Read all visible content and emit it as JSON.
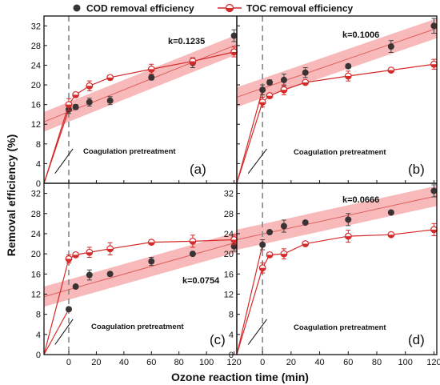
{
  "legend": {
    "cod_label": "COD removal efficiency",
    "toc_label": "TOC removal efficiency"
  },
  "colors": {
    "cod": "#3a3333",
    "toc": "#d42a2a",
    "band": "#f08080",
    "fit": "#e06060",
    "divider": "#888888"
  },
  "chart_data": [
    {
      "type": "scatter",
      "panel_label": "(a)",
      "k_label": "k=0.1235",
      "annotation": "Coagulation pretreatment",
      "xlabel": "Ozone reaction time (min)",
      "ylabel": "Removal efficiency (%)",
      "xlim": [
        -18,
        122
      ],
      "ylim": [
        0,
        34
      ],
      "xticks": [
        0,
        20,
        40,
        60,
        80,
        100,
        120
      ],
      "yticks": [
        0,
        4,
        8,
        12,
        16,
        20,
        24,
        28,
        32
      ],
      "fit": {
        "x": [
          -18,
          122
        ],
        "y": [
          12.5,
          28.2
        ]
      },
      "series": [
        {
          "name": "COD removal efficiency",
          "x": [
            -18,
            0,
            5,
            15,
            30,
            60,
            90,
            120
          ],
          "y": [
            0,
            15.0,
            15.5,
            16.5,
            16.8,
            21.5,
            24.5,
            30.0
          ],
          "err": [
            0,
            0.8,
            0.5,
            0.8,
            0.8,
            0.5,
            1.0,
            1.2
          ]
        },
        {
          "name": "TOC removal efficiency",
          "x": [
            -18,
            0,
            5,
            15,
            30,
            60,
            90,
            120
          ],
          "y": [
            0,
            16.0,
            18.0,
            19.8,
            21.5,
            23.2,
            24.8,
            26.7
          ],
          "err": [
            0,
            1.2,
            0.5,
            1.0,
            0.3,
            1.0,
            0.7,
            1.0
          ]
        }
      ]
    },
    {
      "type": "scatter",
      "panel_label": "(b)",
      "k_label": "k=0.1006",
      "annotation": "Coagulation pretreatment",
      "xlabel": "Ozone reaction time (min)",
      "ylabel": "Removal efficiency (%)",
      "xlim": [
        -18,
        122
      ],
      "ylim": [
        0,
        34
      ],
      "xticks": [
        0,
        20,
        40,
        60,
        80,
        100,
        120
      ],
      "yticks": [
        0,
        4,
        8,
        12,
        16,
        20,
        24,
        28,
        32
      ],
      "fit": {
        "x": [
          -18,
          122
        ],
        "y": [
          17.5,
          31.5
        ]
      },
      "series": [
        {
          "name": "COD removal efficiency",
          "x": [
            -18,
            0,
            5,
            15,
            30,
            60,
            90,
            120
          ],
          "y": [
            0,
            19.0,
            20.5,
            21.0,
            22.5,
            23.8,
            27.8,
            32.0
          ],
          "err": [
            0,
            1.0,
            0.5,
            1.2,
            1.0,
            0.4,
            1.2,
            1.5
          ]
        },
        {
          "name": "TOC removal efficiency",
          "x": [
            -18,
            0,
            5,
            15,
            30,
            60,
            90,
            120
          ],
          "y": [
            0,
            16.5,
            17.8,
            19.0,
            20.5,
            21.8,
            23.0,
            24.2
          ],
          "err": [
            0,
            1.0,
            0.4,
            1.0,
            0.3,
            1.0,
            0.3,
            1.0
          ]
        }
      ]
    },
    {
      "type": "scatter",
      "panel_label": "(c)",
      "k_label": "k=0.0754",
      "annotation": "Coagulation pretreatment",
      "xlabel": "Ozone reaction time (min)",
      "ylabel": "Removal efficiency (%)",
      "xlim": [
        -18,
        122
      ],
      "ylim": [
        0,
        34
      ],
      "xticks": [
        0,
        20,
        40,
        60,
        80,
        100,
        120
      ],
      "yticks": [
        0,
        4,
        8,
        12,
        16,
        20,
        24,
        28,
        32
      ],
      "fit": {
        "x": [
          -18,
          122
        ],
        "y": [
          11.5,
          22.3
        ]
      },
      "series": [
        {
          "name": "COD removal efficiency",
          "x": [
            -18,
            0,
            5,
            15,
            30,
            60,
            90,
            120
          ],
          "y": [
            0,
            9.0,
            13.5,
            15.8,
            16.0,
            18.5,
            20.0,
            21.5
          ],
          "err": [
            0,
            0.3,
            0.3,
            1.0,
            0.4,
            0.8,
            0.3,
            1.0
          ]
        },
        {
          "name": "TOC removal efficiency",
          "x": [
            -18,
            0,
            5,
            15,
            30,
            60,
            90,
            120
          ],
          "y": [
            0,
            19.0,
            19.8,
            20.3,
            21.0,
            22.3,
            22.5,
            22.8
          ],
          "err": [
            0,
            0.8,
            0.3,
            1.0,
            1.2,
            0.3,
            1.2,
            1.0
          ]
        }
      ]
    },
    {
      "type": "scatter",
      "panel_label": "(d)",
      "k_label": "k=0.0666",
      "annotation": "Coagulation pretreatment",
      "xlabel": "Ozone reaction time (min)",
      "ylabel": "Removal efficiency (%)",
      "xlim": [
        -18,
        122
      ],
      "ylim": [
        0,
        34
      ],
      "xticks": [
        0,
        20,
        40,
        60,
        80,
        100,
        120
      ],
      "yticks": [
        0,
        4,
        8,
        12,
        16,
        20,
        24,
        28,
        32
      ],
      "fit": {
        "x": [
          -18,
          122
        ],
        "y": [
          22.8,
          31.5
        ]
      },
      "series": [
        {
          "name": "COD removal efficiency",
          "x": [
            -18,
            0,
            5,
            15,
            30,
            60,
            90,
            120
          ],
          "y": [
            0,
            21.8,
            24.3,
            25.5,
            26.2,
            26.8,
            28.2,
            32.5
          ],
          "err": [
            0,
            1.0,
            0.3,
            1.2,
            0.3,
            1.2,
            0.3,
            1.2
          ]
        },
        {
          "name": "TOC removal efficiency",
          "x": [
            -18,
            0,
            5,
            15,
            30,
            60,
            90,
            120
          ],
          "y": [
            0,
            17.2,
            19.8,
            20.0,
            22.0,
            23.5,
            23.8,
            24.8
          ],
          "err": [
            0,
            1.0,
            0.3,
            1.0,
            0.3,
            1.2,
            0.3,
            1.2
          ]
        }
      ]
    }
  ]
}
